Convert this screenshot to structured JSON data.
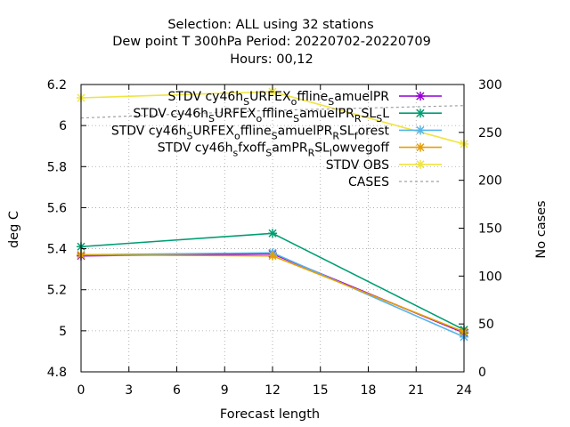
{
  "title": {
    "line1": "Selection: ALL using    32 stations",
    "line2": "Dew point T 300hPa   Period: 20220702-20220709",
    "line3": "Hours:  00,12"
  },
  "chart_data": {
    "type": "line",
    "xlabel": "Forecast length",
    "ylabel": "deg C",
    "y2label": "No cases",
    "xlim": [
      0,
      24
    ],
    "ylim": [
      4.8,
      6.2
    ],
    "y2lim": [
      0,
      300
    ],
    "xticks": [
      "0",
      "3",
      "6",
      "9",
      "12",
      "15",
      "18",
      "21",
      "24"
    ],
    "yticks": [
      "4.8",
      "5",
      "5.2",
      "5.4",
      "5.6",
      "5.8",
      "6",
      "6.2"
    ],
    "y2ticks": [
      "0",
      "50",
      "100",
      "150",
      "200",
      "250",
      "300"
    ],
    "grid": true,
    "legend_position": "top-right",
    "x": [
      0,
      12,
      24
    ],
    "series": [
      {
        "name": "STDV cy46h_SURFEX_offline_SamuelPR",
        "color": "#9400d3",
        "marker": "x-star",
        "axis": "y",
        "values": [
          5.365,
          5.375,
          4.99
        ]
      },
      {
        "name": "STDV cy46h_SURFEX_offline_SamuelPR_RSL_SL",
        "color": "#009e73",
        "marker": "x-star",
        "axis": "y",
        "values": [
          5.41,
          5.475,
          5.005
        ]
      },
      {
        "name": "STDV cy46h_SURFEX_offline_SamuelPR_RSL_forest",
        "color": "#56b4e9",
        "marker": "x-star",
        "axis": "y",
        "values": [
          5.37,
          5.38,
          4.97
        ]
      },
      {
        "name": "STDV cy46h_sfxoff_SamPR_RSL_lowvegoff",
        "color": "#e69f00",
        "marker": "x-star",
        "axis": "y",
        "values": [
          5.37,
          5.365,
          4.995
        ]
      },
      {
        "name": "STDV OBS",
        "color": "#f0e442",
        "marker": "x-star",
        "axis": "y",
        "values": [
          6.135,
          6.165,
          5.91
        ]
      },
      {
        "name": "CASES",
        "color": "#a0a0a0",
        "marker": "none",
        "dashed": true,
        "axis": "y2",
        "values": [
          265,
          273,
          278
        ]
      }
    ]
  }
}
